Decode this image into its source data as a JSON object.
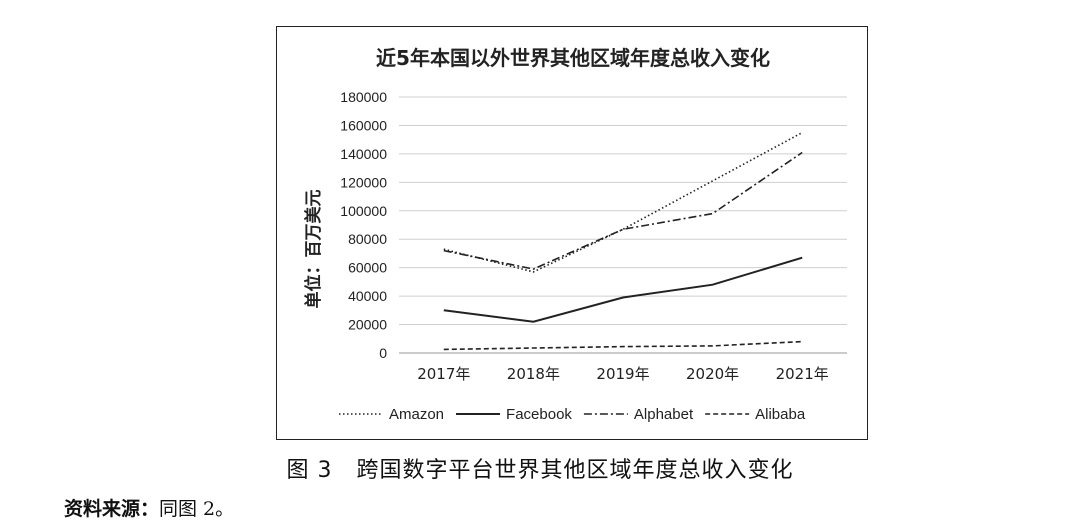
{
  "chart_data": {
    "type": "line",
    "title": "近5年本国以外世界其他区域年度总收入变化",
    "ylabel": "单位：百万美元",
    "xlabel": "",
    "categories": [
      "2017年",
      "2018年",
      "2019年",
      "2020年",
      "2021年"
    ],
    "ylim": [
      0,
      180000
    ],
    "yticks": [
      0,
      20000,
      40000,
      60000,
      80000,
      100000,
      120000,
      140000,
      160000,
      180000
    ],
    "grid": true,
    "legend_position": "bottom",
    "series": [
      {
        "name": "Amazon",
        "style": "dotted",
        "values": [
          73000,
          57000,
          87000,
          121000,
          155000
        ]
      },
      {
        "name": "Facebook",
        "style": "solid",
        "values": [
          30000,
          22000,
          39000,
          48000,
          67000
        ]
      },
      {
        "name": "Alphabet",
        "style": "dashdot",
        "values": [
          72000,
          59000,
          87000,
          98000,
          141000
        ]
      },
      {
        "name": "Alibaba",
        "style": "dashed",
        "values": [
          2500,
          3500,
          4500,
          5000,
          8000
        ]
      }
    ]
  },
  "caption": {
    "label": "图 3",
    "text": "跨国数字平台世界其他区域年度总收入变化"
  },
  "source": {
    "label": "资料来源：",
    "text": "同图 2。"
  }
}
